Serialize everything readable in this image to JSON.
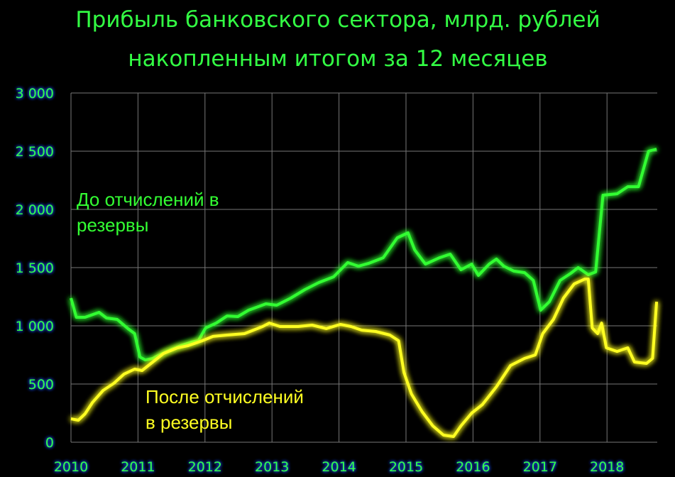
{
  "chart_data": {
    "type": "line",
    "title": [
      "Прибыль банковского сектора, млрд. рублей",
      "накопленным итогом за 12 месяцев"
    ],
    "xlim": [
      2010,
      2018.75
    ],
    "xticks": [
      2010,
      2011,
      2012,
      2013,
      2014,
      2015,
      2016,
      2017,
      2018
    ],
    "ylim": [
      0,
      3000
    ],
    "yticks": [
      0,
      500,
      {
        "value": 1000,
        "label": "1 000"
      },
      {
        "value": 1500,
        "label": "1 500"
      },
      {
        "value": 2000,
        "label": "2 000"
      },
      {
        "value": 2500,
        "label": "2 500"
      },
      {
        "value": 3000,
        "label": "3 000"
      }
    ],
    "grid": true,
    "series": [
      {
        "label_lines": [
          "До отчислений в",
          "резервы"
        ],
        "color": "#33ff33",
        "x": [
          2010,
          2010.08,
          2010.21,
          2010.42,
          2010.53,
          2010.69,
          2010.85,
          2010.95,
          2011.03,
          2011.11,
          2011.22,
          2011.32,
          2011.48,
          2011.64,
          2011.8,
          2011.9,
          2012.01,
          2012.17,
          2012.33,
          2012.49,
          2012.65,
          2012.8,
          2012.91,
          2013.07,
          2013.28,
          2013.49,
          2013.7,
          2013.92,
          2014.13,
          2014.29,
          2014.44,
          2014.66,
          2014.87,
          2015.03,
          2015.13,
          2015.29,
          2015.5,
          2015.66,
          2015.82,
          2015.98,
          2016.08,
          2016.24,
          2016.35,
          2016.46,
          2016.61,
          2016.77,
          2016.9,
          2017.01,
          2017.14,
          2017.3,
          2017.46,
          2017.57,
          2017.72,
          2017.83,
          2017.94,
          2018.15,
          2018.31,
          2018.47,
          2018.62,
          2018.74
        ],
        "values": [
          1238,
          1073,
          1073,
          1116,
          1067,
          1055,
          976,
          933,
          732,
          707,
          720,
          750,
          793,
          830,
          860,
          872,
          982,
          1024,
          1085,
          1079,
          1134,
          1165,
          1189,
          1177,
          1238,
          1311,
          1372,
          1421,
          1543,
          1512,
          1536,
          1585,
          1756,
          1799,
          1652,
          1530,
          1585,
          1616,
          1482,
          1530,
          1433,
          1530,
          1573,
          1512,
          1470,
          1457,
          1390,
          1134,
          1207,
          1390,
          1451,
          1500,
          1439,
          1463,
          2122,
          2134,
          2195,
          2195,
          2500,
          2518
        ]
      },
      {
        "label_lines": [
          "После отчислений",
          "в резервы"
        ],
        "color": "#ffff22",
        "x": [
          2010,
          2010.11,
          2010.21,
          2010.32,
          2010.48,
          2010.64,
          2010.79,
          2010.95,
          2011.06,
          2011.22,
          2011.38,
          2011.59,
          2011.75,
          2011.96,
          2012.12,
          2012.33,
          2012.59,
          2012.86,
          2012.96,
          2013.12,
          2013.39,
          2013.6,
          2013.81,
          2014.02,
          2014.18,
          2014.34,
          2014.55,
          2014.76,
          2014.89,
          2014.97,
          2015.08,
          2015.24,
          2015.4,
          2015.56,
          2015.71,
          2015.82,
          2015.98,
          2016.14,
          2016.35,
          2016.56,
          2016.77,
          2016.93,
          2017.04,
          2017.2,
          2017.35,
          2017.51,
          2017.67,
          2017.72,
          2017.78,
          2017.86,
          2017.92,
          2017.99,
          2018.15,
          2018.31,
          2018.41,
          2018.59,
          2018.68,
          2018.74
        ],
        "values": [
          201,
          189,
          244,
          341,
          445,
          506,
          585,
          628,
          616,
          689,
          762,
          811,
          830,
          872,
          909,
          921,
          933,
          994,
          1024,
          994,
          994,
          1006,
          976,
          1012,
          994,
          963,
          951,
          921,
          872,
          598,
          415,
          262,
          140,
          61,
          49,
          140,
          250,
          323,
          476,
          659,
          720,
          750,
          933,
          1055,
          1238,
          1360,
          1402,
          1402,
          982,
          933,
          1024,
          811,
          780,
          811,
          689,
          677,
          720,
          1207
        ]
      }
    ]
  }
}
